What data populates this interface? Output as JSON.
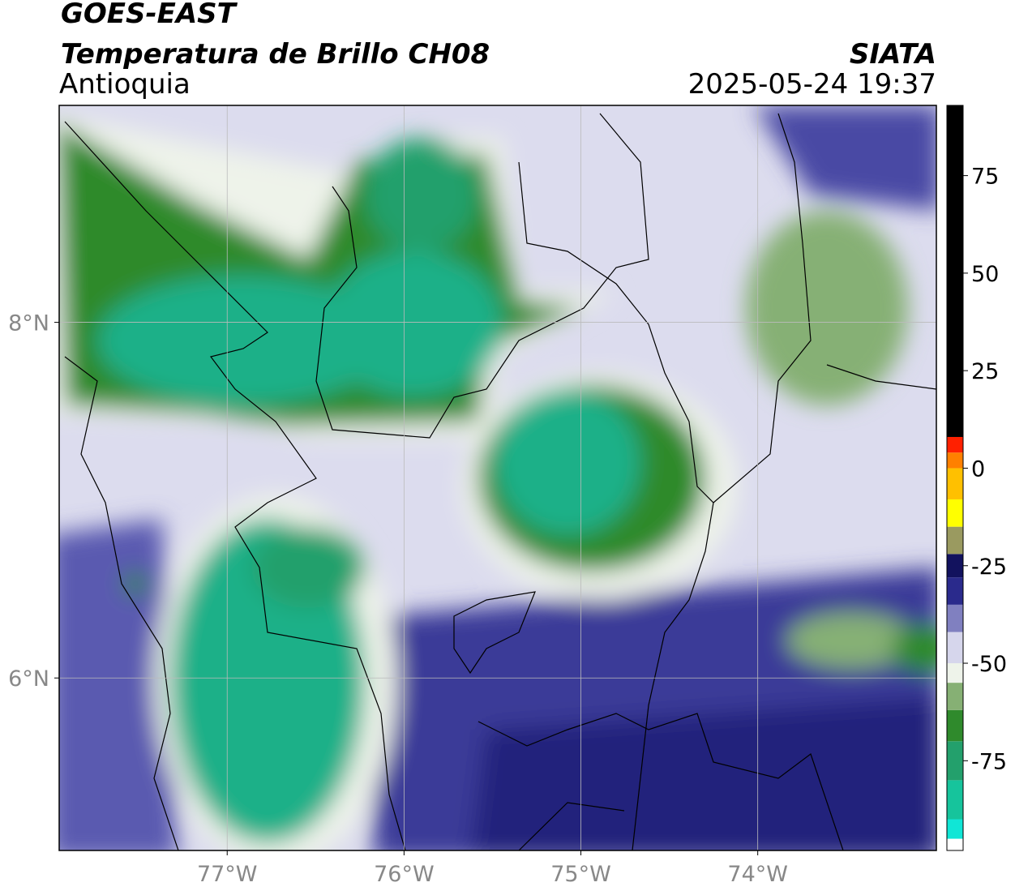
{
  "header": {
    "title": "GOES-EAST",
    "subtitle": "Temperatura de Brillo CH08",
    "region": "Antioquia",
    "source": "SIATA",
    "datetime": "2025-05-24 19:37"
  },
  "map": {
    "xlim": [
      -77.95,
      -72.99
    ],
    "ylim": [
      5.03,
      9.22
    ],
    "xticks": [
      {
        "value": -77,
        "label": "77°W"
      },
      {
        "value": -76,
        "label": "76°W"
      },
      {
        "value": -75,
        "label": "75°W"
      },
      {
        "value": -74,
        "label": "74°W"
      }
    ],
    "yticks": [
      {
        "value": 8,
        "label": "8°N"
      },
      {
        "value": 6,
        "label": "6°N"
      }
    ],
    "grid": true
  },
  "colorbar": {
    "lim": [
      -98,
      93
    ],
    "ticks": [
      75,
      50,
      25,
      0,
      -25,
      -50,
      -75
    ],
    "segments": [
      {
        "from": -98,
        "to": -95,
        "color": "#ffffff"
      },
      {
        "from": -95,
        "to": -90,
        "color": "#10e6d6"
      },
      {
        "from": -90,
        "to": -80,
        "color": "#16c49c"
      },
      {
        "from": -80,
        "to": -70,
        "color": "#23a06c"
      },
      {
        "from": -70,
        "to": -62,
        "color": "#2f8a2c"
      },
      {
        "from": -62,
        "to": -55,
        "color": "#86b074"
      },
      {
        "from": -55,
        "to": -50,
        "color": "#eef3ea"
      },
      {
        "from": -50,
        "to": -42,
        "color": "#d6d6ec"
      },
      {
        "from": -42,
        "to": -35,
        "color": "#8080c0"
      },
      {
        "from": -35,
        "to": -28,
        "color": "#2a2a8c"
      },
      {
        "from": -28,
        "to": -22,
        "color": "#12125e"
      },
      {
        "from": -22,
        "to": -15,
        "color": "#9a9a60"
      },
      {
        "from": -15,
        "to": -8,
        "color": "#ffff00"
      },
      {
        "from": -8,
        "to": 0,
        "color": "#ffc000"
      },
      {
        "from": 0,
        "to": 4,
        "color": "#ff8000"
      },
      {
        "from": 4,
        "to": 8,
        "color": "#ff2000"
      },
      {
        "from": 8,
        "to": 93,
        "color": "#000000"
      }
    ]
  }
}
